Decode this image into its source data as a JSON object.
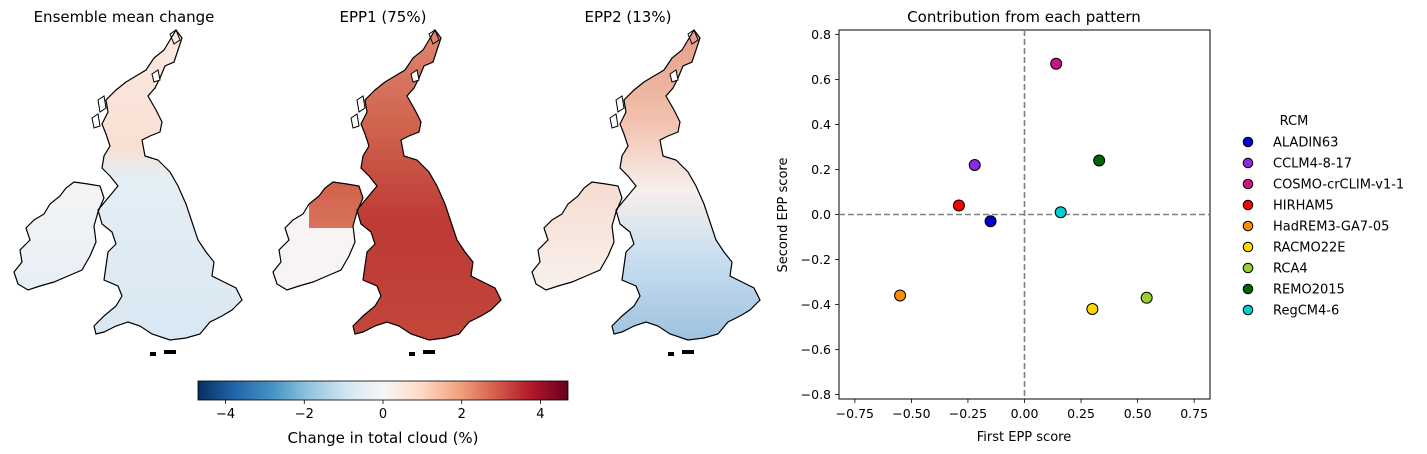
{
  "maps": [
    {
      "title": "Ensemble mean change"
    },
    {
      "title": "EPP1 (75%)"
    },
    {
      "title": "EPP2 (13%)"
    }
  ],
  "colorbar": {
    "label": "Change in total cloud (%)",
    "range": [
      -4.7,
      4.7
    ],
    "ticks": [
      -4,
      -2,
      0,
      2,
      4
    ],
    "tick_labels": [
      "−4",
      "−2",
      "0",
      "2",
      "4"
    ],
    "colormap": [
      "#053061",
      "#2166ac",
      "#4393c3",
      "#92c5de",
      "#d1e5f0",
      "#f7f7f7",
      "#fddbc7",
      "#f4a582",
      "#d6604d",
      "#b2182b",
      "#67001f"
    ]
  },
  "chart_data": {
    "type": "scatter",
    "title": "Contribution from each pattern",
    "xlabel": "First EPP score",
    "ylabel": "Second EPP score",
    "xlim": [
      -0.82,
      0.82
    ],
    "ylim": [
      -0.82,
      0.82
    ],
    "xticks": [
      -0.75,
      -0.5,
      -0.25,
      0.0,
      0.25,
      0.5,
      0.75
    ],
    "xtick_labels": [
      "−0.75",
      "−0.50",
      "−0.25",
      "0.00",
      "0.25",
      "0.50",
      "0.75"
    ],
    "yticks": [
      -0.8,
      -0.6,
      -0.4,
      -0.2,
      0.0,
      0.2,
      0.4,
      0.6,
      0.8
    ],
    "ytick_labels": [
      "−0.8",
      "−0.6",
      "−0.4",
      "−0.2",
      "0.0",
      "0.2",
      "0.4",
      "0.6",
      "0.8"
    ],
    "reference_lines": {
      "x": 0,
      "y": 0,
      "style": "dashed",
      "color": "#808080"
    },
    "grid": false,
    "legend": {
      "title": "RCM",
      "placement": "outside-right"
    },
    "series": [
      {
        "name": "ALADIN63",
        "color": "#0000cd",
        "x": -0.15,
        "y": -0.03
      },
      {
        "name": "CCLM4-8-17",
        "color": "#8a2be2",
        "x": -0.22,
        "y": 0.22
      },
      {
        "name": "COSMO-crCLIM-v1-1",
        "color": "#c71585",
        "x": 0.14,
        "y": 0.67
      },
      {
        "name": "HIRHAM5",
        "color": "#ff0000",
        "x": -0.29,
        "y": 0.04
      },
      {
        "name": "HadREM3-GA7-05",
        "color": "#ff8c00",
        "x": -0.55,
        "y": -0.36
      },
      {
        "name": "RACMO22E",
        "color": "#ffd700",
        "x": 0.3,
        "y": -0.42
      },
      {
        "name": "RCA4",
        "color": "#9acd32",
        "x": 0.54,
        "y": -0.37
      },
      {
        "name": "REMO2015",
        "color": "#006400",
        "x": 0.33,
        "y": 0.24
      },
      {
        "name": "RegCM4-6",
        "color": "#00ced1",
        "x": 0.16,
        "y": 0.01
      }
    ]
  }
}
